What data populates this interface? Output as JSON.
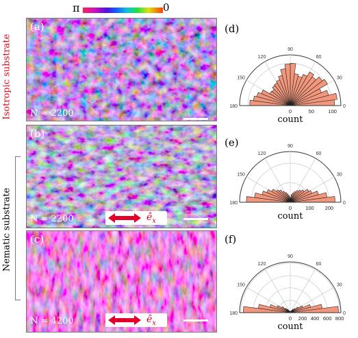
{
  "colorbar": {
    "left_label": "π",
    "right_label": "0"
  },
  "side_labels": {
    "isotropic": "Isotropic substrate",
    "nematic": "Nematic substrate"
  },
  "panels": [
    {
      "id": "(a)",
      "n_label": "N ≈ 2200",
      "has_arrow": false
    },
    {
      "id": "(b)",
      "n_label": "N ≈ 2200",
      "has_arrow": true
    },
    {
      "id": "(c)",
      "n_label": "N ≈ 4200",
      "has_arrow": true
    }
  ],
  "arrow_label": "ê",
  "arrow_sub": "x",
  "colors": {
    "rose_fill": "#f2967c",
    "rose_stroke": "#222222",
    "isotropic_label": "#d0101c"
  },
  "chart_data": [
    {
      "type": "polar-bar",
      "label": "(d)",
      "xlabel": "count",
      "angle_ticks": [
        "0",
        "30",
        "60",
        "90",
        "120",
        "150",
        "180"
      ],
      "radial_ticks": [
        0,
        50,
        100
      ],
      "rmax": 120,
      "bin_width_deg": 7.5,
      "values": [
        105,
        112,
        94,
        80,
        102,
        96,
        86,
        92,
        80,
        72,
        76,
        100,
        98,
        88,
        74,
        66,
        62,
        60,
        54,
        56,
        74,
        82,
        88,
        96
      ]
    },
    {
      "type": "polar-bar",
      "label": "(e)",
      "xlabel": "count",
      "angle_ticks": [
        "0",
        "30",
        "60",
        "90",
        "120",
        "150",
        "180"
      ],
      "radial_ticks": [
        0,
        100,
        200
      ],
      "rmax": 260,
      "bin_width_deg": 7.5,
      "values": [
        230,
        190,
        150,
        120,
        110,
        90,
        80,
        70,
        60,
        50,
        40,
        25,
        20,
        35,
        45,
        55,
        65,
        80,
        90,
        110,
        130,
        150,
        185,
        225
      ]
    },
    {
      "type": "polar-bar",
      "label": "(f)",
      "xlabel": "count",
      "angle_ticks": [
        "0",
        "30",
        "60",
        "90",
        "120",
        "150",
        "180"
      ],
      "radial_ticks": [
        0,
        200,
        400,
        600,
        800
      ],
      "rmax": 820,
      "bin_width_deg": 7.5,
      "values": [
        780,
        520,
        340,
        220,
        150,
        95,
        65,
        40,
        28,
        18,
        12,
        8,
        8,
        12,
        20,
        30,
        42,
        70,
        100,
        160,
        230,
        340,
        520,
        760
      ]
    }
  ]
}
